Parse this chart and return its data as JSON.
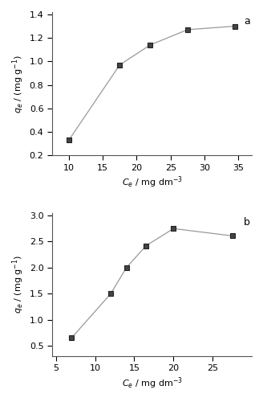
{
  "plot_a": {
    "x": [
      10,
      17.5,
      22,
      27.5,
      34.5
    ],
    "y": [
      0.33,
      0.97,
      1.14,
      1.27,
      1.3
    ],
    "xlabel": "$C_e$ / mg dm$^{-3}$",
    "ylabel": "$q_e$ / (mg g$^{-1}$)",
    "xlim": [
      7.5,
      37
    ],
    "ylim": [
      0.2,
      1.42
    ],
    "xticks": [
      10,
      15,
      20,
      25,
      30,
      35
    ],
    "yticks": [
      0.2,
      0.4,
      0.6,
      0.8,
      1.0,
      1.2,
      1.4
    ],
    "ytick_labels": [
      "0.2",
      "0.4",
      "0.6",
      "0.8",
      "1.0",
      "1.2",
      "1.4"
    ],
    "label": "a"
  },
  "plot_b": {
    "x": [
      7,
      12,
      14,
      16.5,
      20,
      27.5
    ],
    "y": [
      0.65,
      1.5,
      2.0,
      2.42,
      2.75,
      2.61
    ],
    "xlabel": "$C_e$ / mg dm$^{-3}$",
    "ylabel": "$q_e$ / (mg g$^{-1}$)",
    "xlim": [
      4.5,
      30
    ],
    "ylim": [
      0.3,
      3.05
    ],
    "xticks": [
      5,
      10,
      15,
      20,
      25
    ],
    "yticks": [
      0.5,
      1.0,
      1.5,
      2.0,
      2.5,
      3.0
    ],
    "ytick_labels": [
      "0.5",
      "1.0",
      "1.5",
      "2.0",
      "2.5",
      "3.0"
    ],
    "label": "b"
  },
  "marker": "s",
  "markersize": 4,
  "linecolor": "#999999",
  "markerfacecolor": "#444444",
  "markeredgecolor": "#222222",
  "markeredgewidth": 0.8,
  "linewidth": 0.9,
  "font_size": 9,
  "label_fontsize": 8,
  "tick_fontsize": 8
}
